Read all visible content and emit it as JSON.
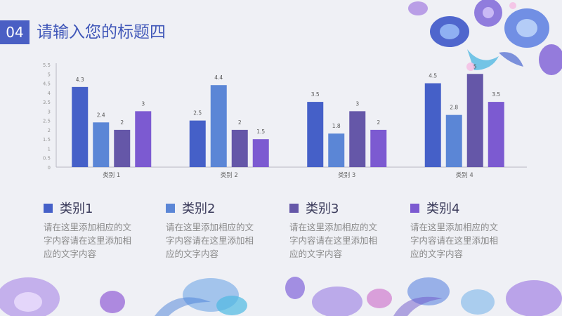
{
  "header": {
    "number": "04",
    "title": "请输入您的标题四"
  },
  "colors": [
    "#4560c8",
    "#5b86d6",
    "#6557a8",
    "#7c5ad1"
  ],
  "chart_data": {
    "type": "bar",
    "categories": [
      "类别 1",
      "类别 2",
      "类别 3",
      "类别 4"
    ],
    "series": [
      {
        "values": [
          4.3,
          2.5,
          3.5,
          4.5
        ]
      },
      {
        "values": [
          2.4,
          4.4,
          1.8,
          2.8
        ]
      },
      {
        "values": [
          2,
          2,
          3,
          5
        ]
      },
      {
        "values": [
          3,
          1.5,
          2,
          3.5
        ]
      }
    ],
    "data_labels": [
      [
        "4.3",
        "2.4",
        "2",
        "3"
      ],
      [
        "2.5",
        "4.4",
        "2",
        "1.5"
      ],
      [
        "3.5",
        "1.8",
        "3",
        "2"
      ],
      [
        "4.5",
        "2.8",
        "5",
        "3.5"
      ]
    ],
    "y_ticks": [
      "0",
      "0.5",
      "1",
      "1.5",
      "2",
      "2.5",
      "3",
      "3.5",
      "4",
      "4.5",
      "5",
      "5.5"
    ],
    "ylim": [
      0,
      5.5
    ]
  },
  "legend": [
    {
      "name": "类别1",
      "desc": "请在这里添加相应的文字内容请在这里添加相应的文字内容"
    },
    {
      "name": "类别2",
      "desc": "请在这里添加相应的文字内容请在这里添加相应的文字内容"
    },
    {
      "name": "类别3",
      "desc": "请在这里添加相应的文字内容请在这里添加相应的文字内容"
    },
    {
      "name": "类别4",
      "desc": "请在这里添加相应的文字内容请在这里添加相应的文字内容"
    }
  ]
}
